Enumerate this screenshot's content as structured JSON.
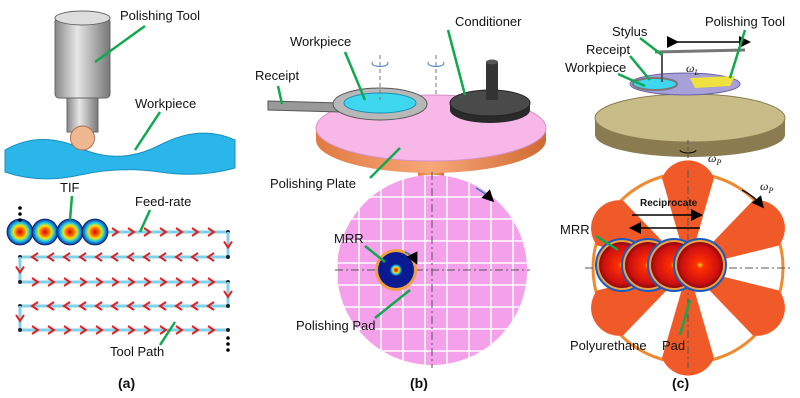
{
  "panels": [
    {
      "caption": "(a)",
      "labels": {
        "polishing_tool": "Polishing Tool",
        "workpiece": "Workpiece",
        "tif": "TIF",
        "feed_rate": "Feed-rate",
        "tool_path": "Tool Path"
      }
    },
    {
      "caption": "(b)",
      "labels": {
        "workpiece": "Workpiece",
        "conditioner": "Conditioner",
        "receipt": "Receipt",
        "polishing_plate": "Polishing Plate",
        "mrr": "MRR",
        "polishing_pad": "Polishing Pad"
      }
    },
    {
      "caption": "(c)",
      "labels": {
        "stylus": "Stylus",
        "polishing_tool": "Polishing Tool",
        "receipt": "Receipt",
        "workpiece": "Workpiece",
        "reciprocate": "Reciprocate",
        "mrr": "MRR",
        "polyurethane": "Polyurethane",
        "pad": "Pad"
      },
      "omega_l": {
        "symbol": "ω",
        "subscript": "L"
      },
      "omega_p_axis": {
        "symbol": "ω",
        "subscript": "P"
      },
      "omega_p_pad": {
        "symbol": "ω",
        "subscript": "P"
      }
    }
  ]
}
